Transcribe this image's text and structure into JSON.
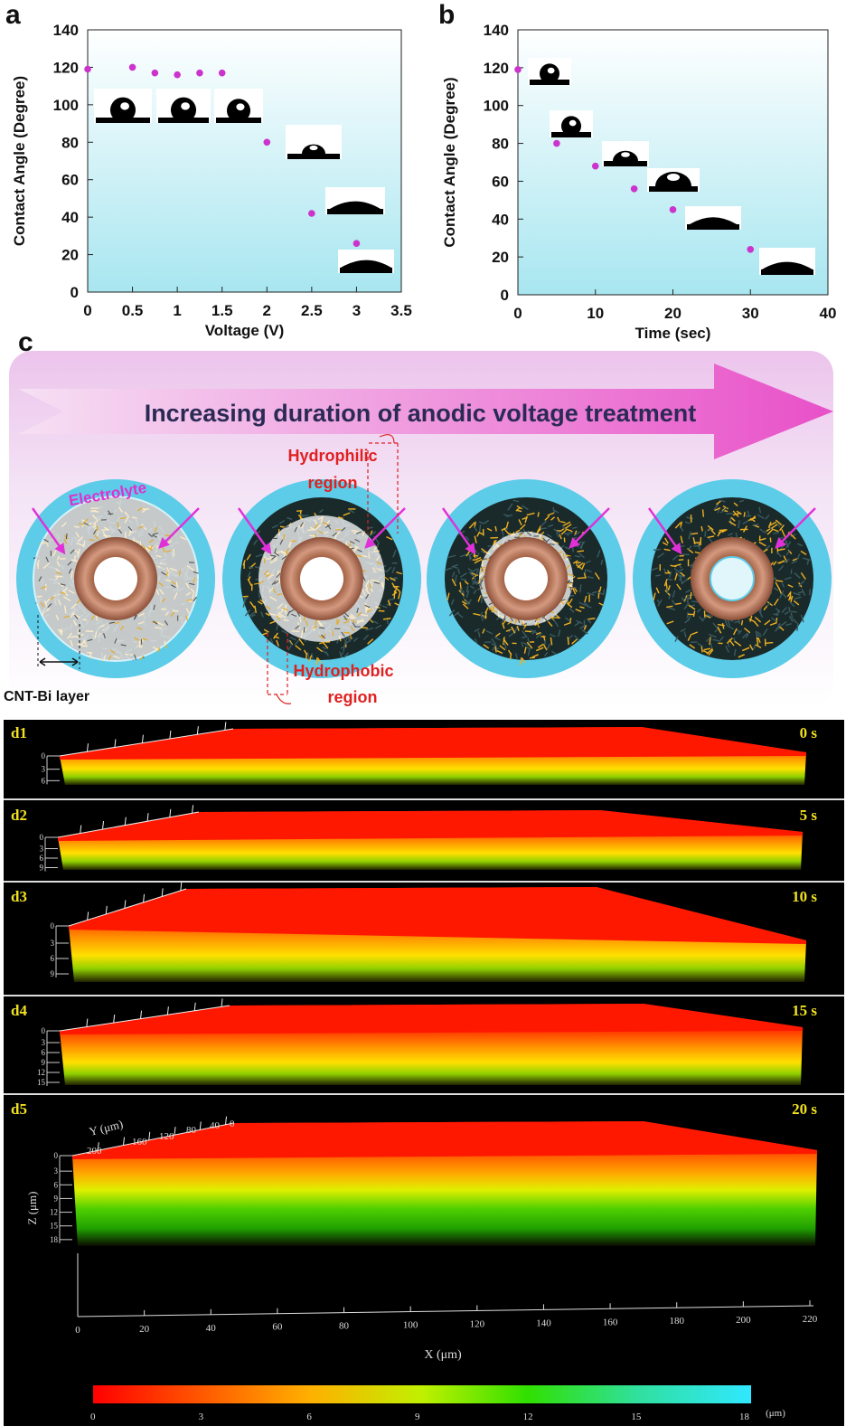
{
  "panel_labels": {
    "a": "a",
    "b": "b",
    "c": "c"
  },
  "chart_data": [
    {
      "type": "scatter",
      "panel": "a",
      "xlabel": "Voltage (V)",
      "ylabel": "Contact Angle (Degree)",
      "xlim": [
        0,
        3.5
      ],
      "ylim": [
        0,
        140
      ],
      "xticks": [
        "0",
        "0.5",
        "1",
        "1.5",
        "2",
        "2.5",
        "3",
        "3.5"
      ],
      "yticks": [
        "0",
        "20",
        "40",
        "60",
        "80",
        "100",
        "120",
        "140"
      ],
      "x": [
        0,
        0.5,
        0.75,
        1.0,
        1.25,
        1.5,
        2.0,
        2.5,
        3.0
      ],
      "y": [
        119,
        120,
        117,
        116,
        117,
        117,
        80,
        42,
        26
      ],
      "color": "#cc33cc",
      "grid": false
    },
    {
      "type": "scatter",
      "panel": "b",
      "xlabel": "Time (sec)",
      "ylabel": "Contact Angle (Degree)",
      "xlim": [
        0,
        40
      ],
      "ylim": [
        0,
        140
      ],
      "xticks": [
        "0",
        "10",
        "20",
        "30",
        "40"
      ],
      "yticks": [
        "0",
        "20",
        "40",
        "60",
        "80",
        "100",
        "120",
        "140"
      ],
      "x": [
        0,
        5,
        10,
        15,
        20,
        30
      ],
      "y": [
        119,
        80,
        68,
        56,
        45,
        24
      ],
      "color": "#cc33cc",
      "grid": false
    }
  ],
  "schematic": {
    "arrow_text": "Increasing duration of anodic voltage treatment",
    "electrolyte_label": "Electrolyte",
    "hydrophilic_label_1": "Hydrophilic",
    "hydrophilic_label_2": "region",
    "hydrophobic_label_1": "Hydrophobic",
    "hydrophobic_label_2": "region",
    "layer_label": "CNT-Bi layer"
  },
  "confocal": {
    "panels": [
      {
        "label": "d1",
        "time": "0 s",
        "zticks": [
          "0",
          "3",
          "6"
        ]
      },
      {
        "label": "d2",
        "time": "5 s",
        "zticks": [
          "0",
          "3",
          "6",
          "9"
        ]
      },
      {
        "label": "d3",
        "time": "10 s",
        "zticks": [
          "0",
          "3",
          "6",
          "9"
        ]
      },
      {
        "label": "d4",
        "time": "15 s",
        "zticks": [
          "0",
          "3",
          "6",
          "9",
          "12",
          "15"
        ]
      },
      {
        "label": "d5",
        "time": "20 s",
        "zticks": [
          "0",
          "3",
          "6",
          "9",
          "12",
          "15",
          "18"
        ]
      }
    ],
    "y_axis_label": "Y (μm)",
    "y_ticks": [
      "200",
      "160",
      "120",
      "80",
      "40",
      "0"
    ],
    "z_axis_label": "Z (μm)",
    "x_axis_label": "X (μm)",
    "x_ticks": [
      "0",
      "20",
      "40",
      "60",
      "80",
      "100",
      "120",
      "140",
      "160",
      "180",
      "200",
      "220"
    ],
    "colorbar_ticks": [
      "0",
      "3",
      "6",
      "9",
      "12",
      "15",
      "18"
    ],
    "colorbar_unit": "(μm)"
  }
}
